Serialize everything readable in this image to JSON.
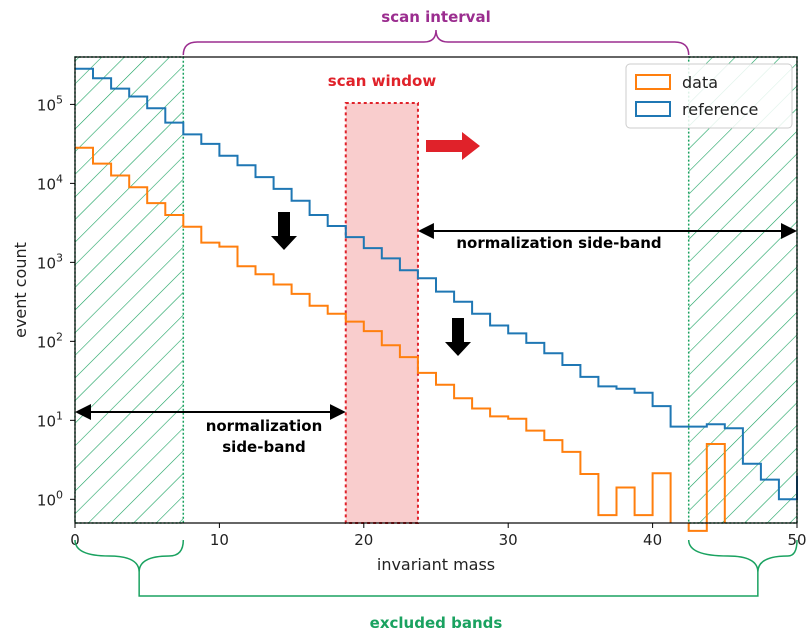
{
  "chart_data": {
    "type": "line",
    "xlabel": "invariant mass",
    "ylabel": "event count",
    "xlim": [
      0,
      50
    ],
    "ylim_log10": [
      -0.3,
      5.6
    ],
    "y_scale": "log",
    "x_ticks": [
      0,
      10,
      20,
      30,
      40,
      50
    ],
    "x_tick_labels": [
      "0",
      "10",
      "20",
      "30",
      "40",
      "50"
    ],
    "y_ticks_log10": [
      0,
      1,
      2,
      3,
      4,
      5
    ],
    "y_tick_labels": [
      {
        "base": "10",
        "exp": "0"
      },
      {
        "base": "10",
        "exp": "1"
      },
      {
        "base": "10",
        "exp": "2"
      },
      {
        "base": "10",
        "exp": "3"
      },
      {
        "base": "10",
        "exp": "4"
      },
      {
        "base": "10",
        "exp": "5"
      }
    ],
    "bin_edges": [
      0,
      1.25,
      2.5,
      3.75,
      5,
      6.25,
      7.5,
      8.75,
      10,
      11.25,
      12.5,
      13.75,
      15,
      16.25,
      17.5,
      18.75,
      20,
      21.25,
      22.5,
      23.75,
      25,
      26.25,
      27.5,
      28.75,
      30,
      31.25,
      32.5,
      33.75,
      35,
      36.25,
      37.5,
      38.75,
      40,
      41.25,
      42.5,
      43.75,
      45,
      46.25,
      47.5,
      48.75,
      50
    ],
    "series": [
      {
        "name": "data",
        "color": "#ff7f0e",
        "style": "step",
        "log10_values": [
          4.45,
          4.25,
          4.1,
          3.95,
          3.75,
          3.6,
          3.45,
          3.25,
          3.2,
          2.95,
          2.85,
          2.72,
          2.6,
          2.45,
          2.35,
          2.25,
          2.13,
          1.95,
          1.8,
          1.6,
          1.45,
          1.28,
          1.15,
          1.05,
          1.02,
          0.87,
          0.75,
          0.6,
          0.32,
          -0.2,
          0.15,
          -0.2,
          0.33,
          -1,
          -0.4,
          0.7,
          -1,
          -1,
          -1,
          -1
        ],
        "note": "bins with value -1 are empty (zero counts)"
      },
      {
        "name": "reference",
        "color": "#1f77b4",
        "style": "step",
        "log10_values": [
          5.45,
          5.33,
          5.2,
          5.1,
          4.95,
          4.77,
          4.62,
          4.5,
          4.35,
          4.23,
          4.08,
          3.93,
          3.78,
          3.6,
          3.46,
          3.32,
          3.18,
          3.05,
          2.9,
          2.8,
          2.63,
          2.5,
          2.35,
          2.2,
          2.1,
          1.98,
          1.85,
          1.7,
          1.55,
          1.43,
          1.4,
          1.35,
          1.18,
          0.92,
          0.92,
          0.95,
          0.9,
          0.45,
          0.25,
          0.0,
          0.3
        ],
        "note": "last value continues to right edge"
      }
    ],
    "legend": {
      "position": "top-right",
      "entries": [
        {
          "label": "data",
          "color": "#ff7f0e"
        },
        {
          "label": "reference",
          "color": "#1f77b4"
        }
      ]
    },
    "annotations": {
      "scan_interval": {
        "label": "scan interval",
        "color": "#9b2d8f",
        "x_range": [
          7.5,
          42.5
        ]
      },
      "scan_window": {
        "label": "scan window",
        "color": "#e0222a",
        "x_range": [
          18.75,
          23.75
        ]
      },
      "excluded_bands": {
        "label": "excluded bands",
        "color": "#1aa260",
        "x_ranges": [
          [
            0,
            7.5
          ],
          [
            42.5,
            50
          ]
        ]
      },
      "sideband_right": {
        "label": "normalization side-band",
        "x_range": [
          23.75,
          50
        ]
      },
      "sideband_left": {
        "label_line1": "normalization",
        "label_line2": "side-band",
        "x_range": [
          0,
          18.75
        ]
      }
    }
  }
}
